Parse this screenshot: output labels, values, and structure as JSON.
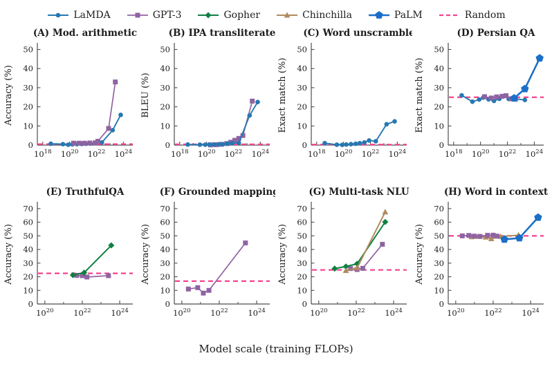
{
  "figure": {
    "caption": "Model scale (training FLOPs)",
    "legend": [
      {
        "label": "LaMDA",
        "color": "#2678b2",
        "marker": "circle",
        "line_width": 1.9,
        "marker_size": 3.3
      },
      {
        "label": "GPT-3",
        "color": "#8f63a2",
        "marker": "square",
        "line_width": 1.7,
        "marker_size": 3.5
      },
      {
        "label": "Gopher",
        "color": "#0f8040",
        "marker": "diamond",
        "line_width": 2.0,
        "marker_size": 4.5
      },
      {
        "label": "Chinchilla",
        "color": "#b08a5e",
        "marker": "triangle",
        "line_width": 2.0,
        "marker_size": 4.6
      },
      {
        "label": "PaLM",
        "color": "#1b6fc8",
        "marker": "pentagon",
        "line_width": 2.6,
        "marker_size": 6.0
      },
      {
        "label": "Random",
        "color": "#f5418f",
        "marker": "dash",
        "line_width": 2.2,
        "marker_size": 0
      }
    ]
  },
  "chart_data": [
    {
      "type": "line",
      "id": "A",
      "title": "(A) Mod. arithmetic",
      "ylabel": "Accuracy (%)",
      "ylim": [
        0,
        52
      ],
      "yticks": [
        0,
        10,
        20,
        30,
        40,
        50
      ],
      "xlim": [
        17.6,
        24.7
      ],
      "xticks": [
        18,
        20,
        22,
        24
      ],
      "x_axis": "log10 training FLOPs (exponents)",
      "random_baseline": 0.5,
      "series": [
        {
          "name": "LaMDA",
          "x": [
            18.6,
            19.5,
            19.9,
            20.2,
            20.55,
            20.9,
            21.2,
            21.55,
            21.9,
            22.4,
            23.2,
            23.8
          ],
          "y": [
            0.7,
            0.5,
            0.2,
            0.4,
            0.5,
            0.6,
            0.7,
            0.8,
            1.0,
            1.4,
            7.8,
            15.8
          ]
        },
        {
          "name": "GPT-3",
          "x": [
            20.3,
            20.7,
            21.1,
            21.5,
            21.9,
            22.1,
            22.9,
            23.4
          ],
          "y": [
            1.0,
            1.0,
            1.0,
            1.1,
            1.2,
            2.0,
            8.7,
            33.0
          ]
        }
      ]
    },
    {
      "type": "line",
      "id": "B",
      "title": "(B) IPA transliterate",
      "ylabel": "BLEU (%)",
      "ylim": [
        0,
        52
      ],
      "yticks": [
        0,
        10,
        20,
        30,
        40,
        50
      ],
      "xlim": [
        17.6,
        24.7
      ],
      "xticks": [
        18,
        20,
        22,
        24
      ],
      "x_axis": "log10 training FLOPs (exponents)",
      "random_baseline": 0.4,
      "series": [
        {
          "name": "GPT-3",
          "x": [
            20.3,
            20.7,
            21.1,
            21.5,
            21.8,
            22.1,
            22.4,
            22.7,
            23.4
          ],
          "y": [
            0.1,
            0.2,
            0.4,
            0.8,
            1.5,
            2.5,
            3.5,
            5.0,
            23.0
          ]
        },
        {
          "name": "LaMDA",
          "x": [
            18.6,
            19.5,
            19.9,
            20.2,
            20.55,
            20.9,
            21.2,
            21.55,
            21.9,
            22.4,
            23.2,
            23.8
          ],
          "y": [
            0.3,
            0.2,
            0.2,
            0.3,
            0.3,
            0.4,
            0.5,
            0.8,
            1.0,
            1.2,
            15.5,
            22.5
          ]
        }
      ]
    },
    {
      "type": "line",
      "id": "C",
      "title": "(C) Word unscramble",
      "ylabel": "Exact match (%)",
      "ylim": [
        0,
        52
      ],
      "yticks": [
        0,
        10,
        20,
        30,
        40,
        50
      ],
      "xlim": [
        17.6,
        24.7
      ],
      "xticks": [
        18,
        20,
        22,
        24
      ],
      "x_axis": "log10 training FLOPs (exponents)",
      "random_baseline": 0.3,
      "series": [
        {
          "name": "LaMDA",
          "x": [
            18.6,
            19.5,
            19.9,
            20.2,
            20.55,
            20.9,
            21.2,
            21.55,
            21.9,
            22.4,
            23.2,
            23.8
          ],
          "y": [
            1.0,
            0.2,
            0.1,
            0.3,
            0.5,
            0.7,
            1.0,
            1.4,
            2.4,
            2.0,
            10.9,
            12.4
          ]
        }
      ]
    },
    {
      "type": "line",
      "id": "D",
      "title": "(D) Persian QA",
      "ylabel": "Exact match (%)",
      "ylim": [
        0,
        52
      ],
      "yticks": [
        0,
        10,
        20,
        30,
        40,
        50
      ],
      "xlim": [
        17.6,
        24.7
      ],
      "xticks": [
        18,
        20,
        22,
        24
      ],
      "x_axis": "log10 training FLOPs (exponents)",
      "random_baseline": 25,
      "series": [
        {
          "name": "LaMDA",
          "x": [
            18.6,
            19.4,
            19.9,
            20.2,
            20.6,
            21.0,
            21.4,
            21.8,
            22.1,
            22.4,
            23.3
          ],
          "y": [
            26.0,
            22.7,
            23.8,
            24.8,
            23.9,
            23.1,
            24.2,
            25.9,
            24.1,
            24.3,
            23.6
          ]
        },
        {
          "name": "GPT-3",
          "x": [
            20.3,
            20.8,
            21.2,
            21.6,
            21.9,
            22.3,
            22.6
          ],
          "y": [
            25.3,
            24.6,
            25.2,
            25.5,
            25.8,
            24.2,
            24.0
          ]
        },
        {
          "name": "PaLM",
          "x": [
            22.5,
            23.3,
            24.4
          ],
          "y": [
            24.5,
            29.4,
            45.4
          ]
        }
      ]
    },
    {
      "type": "line",
      "id": "E",
      "title": "(E) TruthfulQA",
      "ylabel": "Accuracy (%)",
      "ylim": [
        0,
        73
      ],
      "yticks": [
        0,
        10,
        20,
        30,
        40,
        50,
        60,
        70
      ],
      "xlim": [
        19.6,
        24.7
      ],
      "xticks": [
        20,
        22,
        24
      ],
      "x_axis": "log10 training FLOPs (exponents)",
      "random_baseline": 22.5,
      "series": [
        {
          "name": "GPT-3",
          "x": [
            21.7,
            22.0,
            22.25,
            23.4
          ],
          "y": [
            21.0,
            20.8,
            19.8,
            20.8
          ]
        },
        {
          "name": "Gopher",
          "x": [
            21.5,
            22.1,
            23.55
          ],
          "y": [
            21.2,
            23.0,
            43.0
          ]
        }
      ]
    },
    {
      "type": "line",
      "id": "F",
      "title": "(F) Grounded mappings",
      "ylabel": "Accuracy (%)",
      "ylim": [
        0,
        73
      ],
      "yticks": [
        0,
        10,
        20,
        30,
        40,
        50,
        60,
        70
      ],
      "xlim": [
        19.6,
        24.7
      ],
      "xticks": [
        20,
        22,
        24
      ],
      "x_axis": "log10 training FLOPs (exponents)",
      "random_baseline": 16.8,
      "series": [
        {
          "name": "GPT-3",
          "x": [
            20.35,
            20.85,
            21.15,
            21.45,
            23.4
          ],
          "y": [
            11.0,
            12.0,
            8.0,
            10.0,
            44.8
          ]
        }
      ]
    },
    {
      "type": "line",
      "id": "G",
      "title": "(G) Multi-task NLU",
      "ylabel": "Accuracy (%)",
      "ylim": [
        0,
        73
      ],
      "yticks": [
        0,
        10,
        20,
        30,
        40,
        50,
        60,
        70
      ],
      "xlim": [
        19.6,
        24.7
      ],
      "xticks": [
        20,
        22,
        24
      ],
      "x_axis": "log10 training FLOPs (exponents)",
      "random_baseline": 25,
      "series": [
        {
          "name": "GPT-3",
          "x": [
            21.7,
            22.05,
            22.35,
            23.4
          ],
          "y": [
            26.0,
            25.3,
            26.2,
            43.8
          ]
        },
        {
          "name": "Gopher",
          "x": [
            20.85,
            21.45,
            22.05,
            23.55
          ],
          "y": [
            26.0,
            27.5,
            29.5,
            60.2
          ]
        },
        {
          "name": "Chinchilla",
          "x": [
            21.45,
            22.05,
            23.55
          ],
          "y": [
            24.5,
            26.5,
            67.5
          ]
        }
      ]
    },
    {
      "type": "line",
      "id": "H",
      "title": "(H) Word in context",
      "ylabel": "Accuracy (%)",
      "ylim": [
        0,
        73
      ],
      "yticks": [
        0,
        10,
        20,
        30,
        40,
        50,
        60,
        70
      ],
      "xlim": [
        19.6,
        24.7
      ],
      "xticks": [
        20,
        22,
        24
      ],
      "x_axis": "log10 training FLOPs (exponents)",
      "random_baseline": 50,
      "series": [
        {
          "name": "Chinchilla",
          "x": [
            20.85,
            21.2,
            21.6,
            21.9,
            22.4,
            23.35
          ],
          "y": [
            49.3,
            49.5,
            49.0,
            47.9,
            49.5,
            50.5
          ]
        },
        {
          "name": "GPT-3",
          "x": [
            20.35,
            20.7,
            21.0,
            21.3,
            21.7,
            22.0,
            22.2
          ],
          "y": [
            50.0,
            50.3,
            49.8,
            49.6,
            50.4,
            50.5,
            49.8
          ]
        },
        {
          "name": "PaLM",
          "x": [
            22.6,
            23.4,
            24.4
          ],
          "y": [
            47.4,
            48.4,
            63.5
          ]
        }
      ]
    }
  ]
}
